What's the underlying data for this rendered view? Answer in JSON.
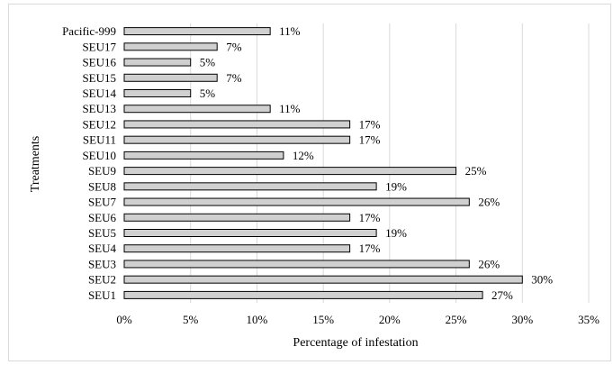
{
  "chart_data": {
    "type": "bar",
    "orientation": "horizontal",
    "categories": [
      "SEU1",
      "SEU2",
      "SEU3",
      "SEU4",
      "SEU5",
      "SEU6",
      "SEU7",
      "SEU8",
      "SEU9",
      "SEU10",
      "SEU11",
      "SEU12",
      "SEU13",
      "SEU14",
      "SEU15",
      "SEU16",
      "SEU17",
      "Pacific-999"
    ],
    "values": [
      27,
      30,
      26,
      17,
      19,
      17,
      26,
      19,
      25,
      12,
      17,
      17,
      11,
      5,
      7,
      5,
      7,
      11
    ],
    "data_labels": [
      "27%",
      "30%",
      "26%",
      "17%",
      "19%",
      "17%",
      "26%",
      "19%",
      "25%",
      "12%",
      "17%",
      "17%",
      "11%",
      "5%",
      "7%",
      "5%",
      "7%",
      "11%"
    ],
    "xlim": [
      0,
      35
    ],
    "x_ticks": [
      0,
      5,
      10,
      15,
      20,
      25,
      30,
      35
    ],
    "x_tick_labels": [
      "0%",
      "5%",
      "10%",
      "15%",
      "20%",
      "25%",
      "30%",
      "35%"
    ],
    "xlabel": "Percentage of infestation",
    "ylabel": "Treatments",
    "grid": "vertical",
    "legend": "none",
    "colors": {
      "bar_fill": "#d0d0d0",
      "bar_stroke": "#000000",
      "grid": "#d9d9d9"
    }
  }
}
